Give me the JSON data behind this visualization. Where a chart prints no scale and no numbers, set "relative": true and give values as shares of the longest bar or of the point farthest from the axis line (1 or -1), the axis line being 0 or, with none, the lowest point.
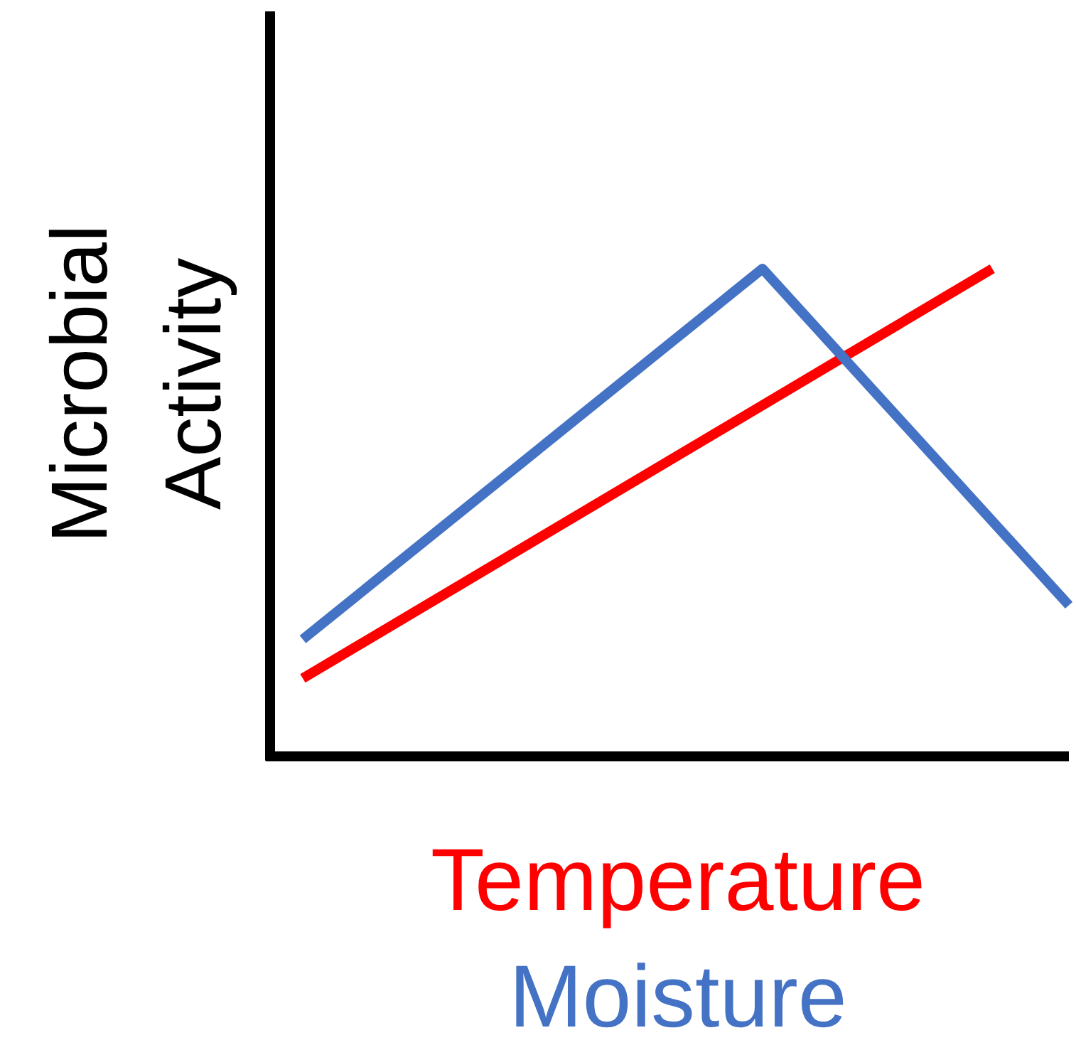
{
  "chart_data": {
    "type": "line",
    "relative": true,
    "ylabel": "Microbial Activity",
    "marker": "none",
    "line_style": "solid",
    "categories": [
      null,
      null,
      null,
      null,
      null,
      null,
      null,
      null,
      null,
      null,
      null
    ],
    "series": [
      {
        "name": "Temperature",
        "color": "#ff0000",
        "values": [
          0.16,
          null,
          null,
          null,
          null,
          null,
          null,
          null,
          null,
          1,
          null
        ]
      },
      {
        "name": "Moisture",
        "color": "#4472c4",
        "values": [
          0.24,
          null,
          null,
          null,
          null,
          null,
          1,
          null,
          null,
          null,
          0.31
        ]
      }
    ]
  }
}
